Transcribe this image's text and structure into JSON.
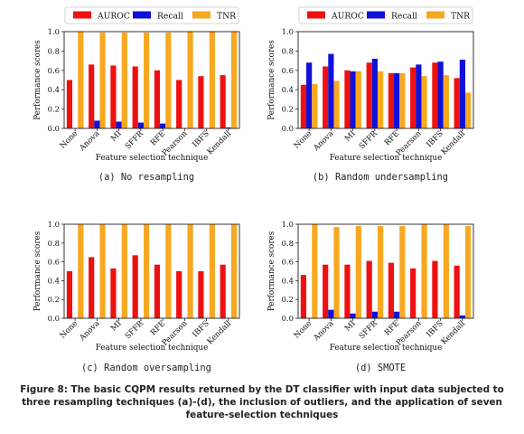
{
  "colors": {
    "AUROC": "#ee1111",
    "Recall": "#1010d8",
    "TNR": "#f7a820"
  },
  "caption": "Figure 8: The basic CQPM results returned by the DT classifier with input data subjected to three resampling techniques (a)-(d), the inclusion of outliers, and the application of seven feature-selection techniques",
  "chart_data": [
    {
      "type": "bar",
      "subcaption": "(a) No resampling",
      "xlabel": "Feature selection technique",
      "ylabel": "Performance scores",
      "ylim": [
        0,
        1.0
      ],
      "yticks": [
        "0.0",
        "0.2",
        "0.4",
        "0.6",
        "0.8",
        "1.0"
      ],
      "legend_position": "top",
      "grid": false,
      "categories": [
        "None",
        "Anova",
        "MI",
        "SFFR",
        "RFE",
        "Pearson",
        "IBFS",
        "Kendall"
      ],
      "series": [
        {
          "name": "AUROC",
          "values": [
            0.5,
            0.66,
            0.65,
            0.64,
            0.6,
            0.5,
            0.54,
            0.55
          ]
        },
        {
          "name": "Recall",
          "values": [
            0.0,
            0.08,
            0.07,
            0.06,
            0.05,
            0.0,
            0.0,
            0.01
          ]
        },
        {
          "name": "TNR",
          "values": [
            1.0,
            0.99,
            0.99,
            0.99,
            0.99,
            1.0,
            1.0,
            1.0
          ]
        }
      ]
    },
    {
      "type": "bar",
      "subcaption": "(b) Random undersampling",
      "xlabel": "Feature selection technique",
      "ylabel": "Performance scores",
      "ylim": [
        0,
        1.0
      ],
      "yticks": [
        "0.0",
        "0.2",
        "0.4",
        "0.6",
        "0.8",
        "1.0"
      ],
      "legend_position": "top",
      "grid": false,
      "categories": [
        "None",
        "Anova",
        "MI",
        "SFFR",
        "RFE",
        "Pearson",
        "IBFS",
        "Kendall"
      ],
      "series": [
        {
          "name": "AUROC",
          "values": [
            0.45,
            0.64,
            0.6,
            0.68,
            0.57,
            0.63,
            0.68,
            0.52
          ]
        },
        {
          "name": "Recall",
          "values": [
            0.68,
            0.77,
            0.59,
            0.72,
            0.57,
            0.66,
            0.69,
            0.71
          ]
        },
        {
          "name": "TNR",
          "values": [
            0.46,
            0.49,
            0.59,
            0.59,
            0.57,
            0.54,
            0.55,
            0.37
          ]
        }
      ]
    },
    {
      "type": "bar",
      "subcaption": "(c) Random oversampling",
      "xlabel": "Feature selection technique",
      "ylabel": "Performance scores",
      "ylim": [
        0,
        1.0
      ],
      "yticks": [
        "0.0",
        "0.2",
        "0.4",
        "0.6",
        "0.8",
        "1.0"
      ],
      "legend_position": "top",
      "grid": false,
      "categories": [
        "None",
        "Anova",
        "MI",
        "SFFR",
        "RFE",
        "Pearson",
        "IBFS",
        "Kendall"
      ],
      "series": [
        {
          "name": "AUROC",
          "values": [
            0.5,
            0.65,
            0.53,
            0.67,
            0.57,
            0.5,
            0.5,
            0.57
          ]
        },
        {
          "name": "Recall",
          "values": [
            0.0,
            0.0,
            0.0,
            0.0,
            0.0,
            0.0,
            0.0,
            0.0
          ]
        },
        {
          "name": "TNR",
          "values": [
            1.0,
            1.0,
            1.0,
            1.0,
            1.0,
            1.0,
            1.0,
            1.0
          ]
        }
      ]
    },
    {
      "type": "bar",
      "subcaption": "(d) SMOTE",
      "xlabel": "Feature selection technique",
      "ylabel": "Performance scores",
      "ylim": [
        0,
        1.0
      ],
      "yticks": [
        "0.0",
        "0.2",
        "0.4",
        "0.6",
        "0.8",
        "1.0"
      ],
      "legend_position": "top",
      "grid": false,
      "categories": [
        "None",
        "Anova",
        "MI",
        "SFFR",
        "RFE",
        "Pearson",
        "IBFS",
        "Kendall"
      ],
      "series": [
        {
          "name": "AUROC",
          "values": [
            0.46,
            0.57,
            0.57,
            0.61,
            0.59,
            0.53,
            0.61,
            0.56
          ]
        },
        {
          "name": "Recall",
          "values": [
            0.0,
            0.09,
            0.05,
            0.07,
            0.07,
            0.0,
            0.0,
            0.03
          ]
        },
        {
          "name": "TNR",
          "values": [
            1.0,
            0.97,
            0.98,
            0.98,
            0.98,
            1.0,
            1.0,
            0.98
          ]
        }
      ]
    }
  ]
}
